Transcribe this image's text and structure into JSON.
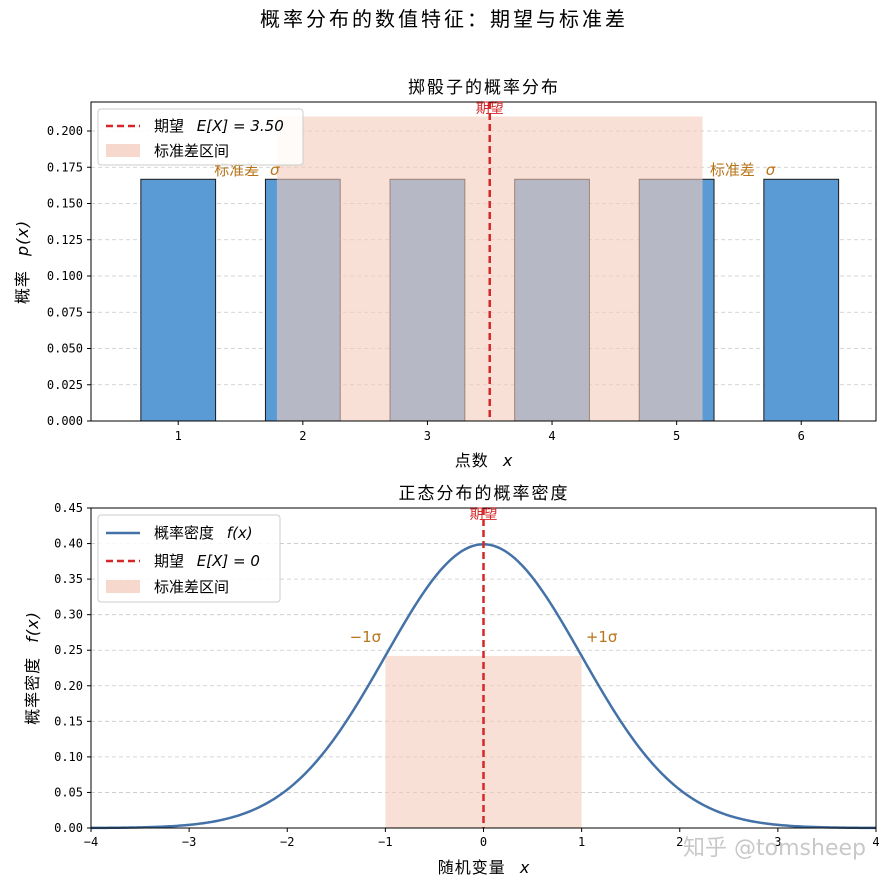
{
  "suptitle": "概率分布的数值特征：期望与标准差",
  "watermark": "知乎 @tomsheep",
  "colors": {
    "bar": "#5b9bd5",
    "bar_stroke": "#1a1a1a",
    "shade": "#f4cbbb",
    "mean_line": "#d62728",
    "curve": "#4472a8",
    "sigma_text": "#b8741a",
    "grid": "#c8c8c8"
  },
  "chart_data": [
    {
      "type": "bar",
      "title": "掷骰子的概率分布",
      "xlabel": "点数",
      "xlabel_var": "x",
      "ylabel": "概率",
      "ylabel_var": "p(x)",
      "categories": [
        1,
        2,
        3,
        4,
        5,
        6
      ],
      "values": [
        0.1667,
        0.1667,
        0.1667,
        0.1667,
        0.1667,
        0.1667
      ],
      "xlim": [
        0.3,
        6.6
      ],
      "ylim": [
        0,
        0.22
      ],
      "yticks": [
        0.0,
        0.025,
        0.05,
        0.075,
        0.1,
        0.125,
        0.15,
        0.175,
        0.2
      ],
      "ytick_labels": [
        "0.000",
        "0.025",
        "0.050",
        "0.075",
        "0.100",
        "0.125",
        "0.150",
        "0.175",
        "0.200"
      ],
      "xticks": [
        1,
        2,
        3,
        4,
        5,
        6
      ],
      "xtick_labels": [
        "1",
        "2",
        "3",
        "4",
        "5",
        "6"
      ],
      "mean": 3.5,
      "std": 1.708,
      "shade_top": 0.21,
      "grid": "y-dashed",
      "legend": {
        "position": "top-left",
        "entries": [
          {
            "label": "期望",
            "math": "E[X] = 3.50"
          },
          {
            "label": "标准差区间"
          }
        ]
      },
      "annotations": {
        "mean_label": "期望",
        "sigma_left": "标准差",
        "sigma_right": "标准差",
        "sigma_symbol": "σ"
      }
    },
    {
      "type": "line",
      "title": "正态分布的概率密度",
      "xlabel": "随机变量",
      "xlabel_var": "x",
      "ylabel": "概率密度",
      "ylabel_var": "f(x)",
      "function": "standard normal pdf",
      "x": [
        -4.0,
        -3.5,
        -3.0,
        -2.5,
        -2.0,
        -1.5,
        -1.0,
        -0.5,
        0.0,
        0.5,
        1.0,
        1.5,
        2.0,
        2.5,
        3.0,
        3.5,
        4.0
      ],
      "y": [
        0.0001,
        0.0009,
        0.0044,
        0.0175,
        0.054,
        0.1295,
        0.242,
        0.3521,
        0.3989,
        0.3521,
        0.242,
        0.1295,
        0.054,
        0.0175,
        0.0044,
        0.0009,
        0.0001
      ],
      "xlim": [
        -4,
        4
      ],
      "ylim": [
        0,
        0.45
      ],
      "xticks": [
        -4,
        -3,
        -2,
        -1,
        0,
        1,
        2,
        3,
        4
      ],
      "xtick_labels": [
        "−4",
        "−3",
        "−2",
        "−1",
        "0",
        "1",
        "2",
        "3",
        "4"
      ],
      "yticks": [
        0.0,
        0.05,
        0.1,
        0.15,
        0.2,
        0.25,
        0.3,
        0.35,
        0.4,
        0.45
      ],
      "ytick_labels": [
        "0.00",
        "0.05",
        "0.10",
        "0.15",
        "0.20",
        "0.25",
        "0.30",
        "0.35",
        "0.40",
        "0.45"
      ],
      "mean": 0,
      "std": 1,
      "grid": "y-dashed",
      "legend": {
        "position": "top-left",
        "entries": [
          {
            "label": "概率密度",
            "math": "f(x)"
          },
          {
            "label": "期望",
            "math": "E[X] = 0"
          },
          {
            "label": "标准差区间"
          }
        ]
      },
      "annotations": {
        "mean_label": "期望",
        "minus_sigma": "−1σ",
        "plus_sigma": "+1σ"
      }
    }
  ]
}
